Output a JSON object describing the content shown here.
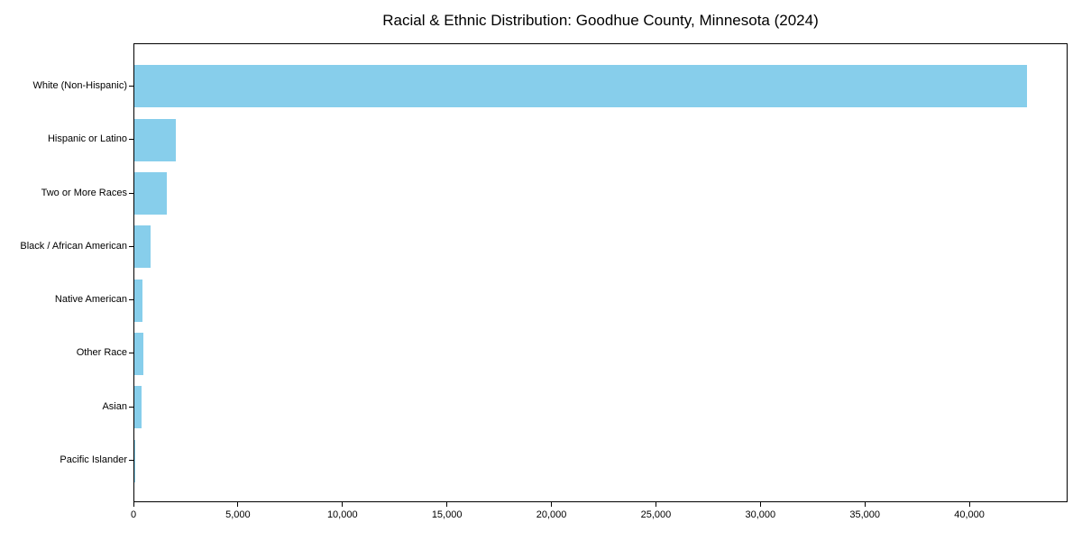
{
  "chart_data": {
    "type": "bar",
    "orientation": "horizontal",
    "title": "Racial & Ethnic Distribution: Goodhue County, Minnesota (2024)",
    "categories": [
      "White (Non-Hispanic)",
      "Hispanic or Latino",
      "Two or More Races",
      "Black / African American",
      "Native American",
      "Other Race",
      "Asian",
      "Pacific Islander"
    ],
    "values": [
      42700,
      2000,
      1560,
      760,
      400,
      410,
      350,
      20
    ],
    "xlabel": "",
    "ylabel": "",
    "xlim": [
      0,
      44700
    ],
    "xticks": [
      0,
      5000,
      10000,
      15000,
      20000,
      25000,
      30000,
      35000,
      40000
    ],
    "xtick_labels": [
      "0",
      "5,000",
      "10,000",
      "15,000",
      "20,000",
      "25,000",
      "30,000",
      "35,000",
      "40,000"
    ],
    "bar_color": "#87CEEB",
    "axis_color": "#000000",
    "text_color": "#000000",
    "grid": false,
    "legend": null
  }
}
